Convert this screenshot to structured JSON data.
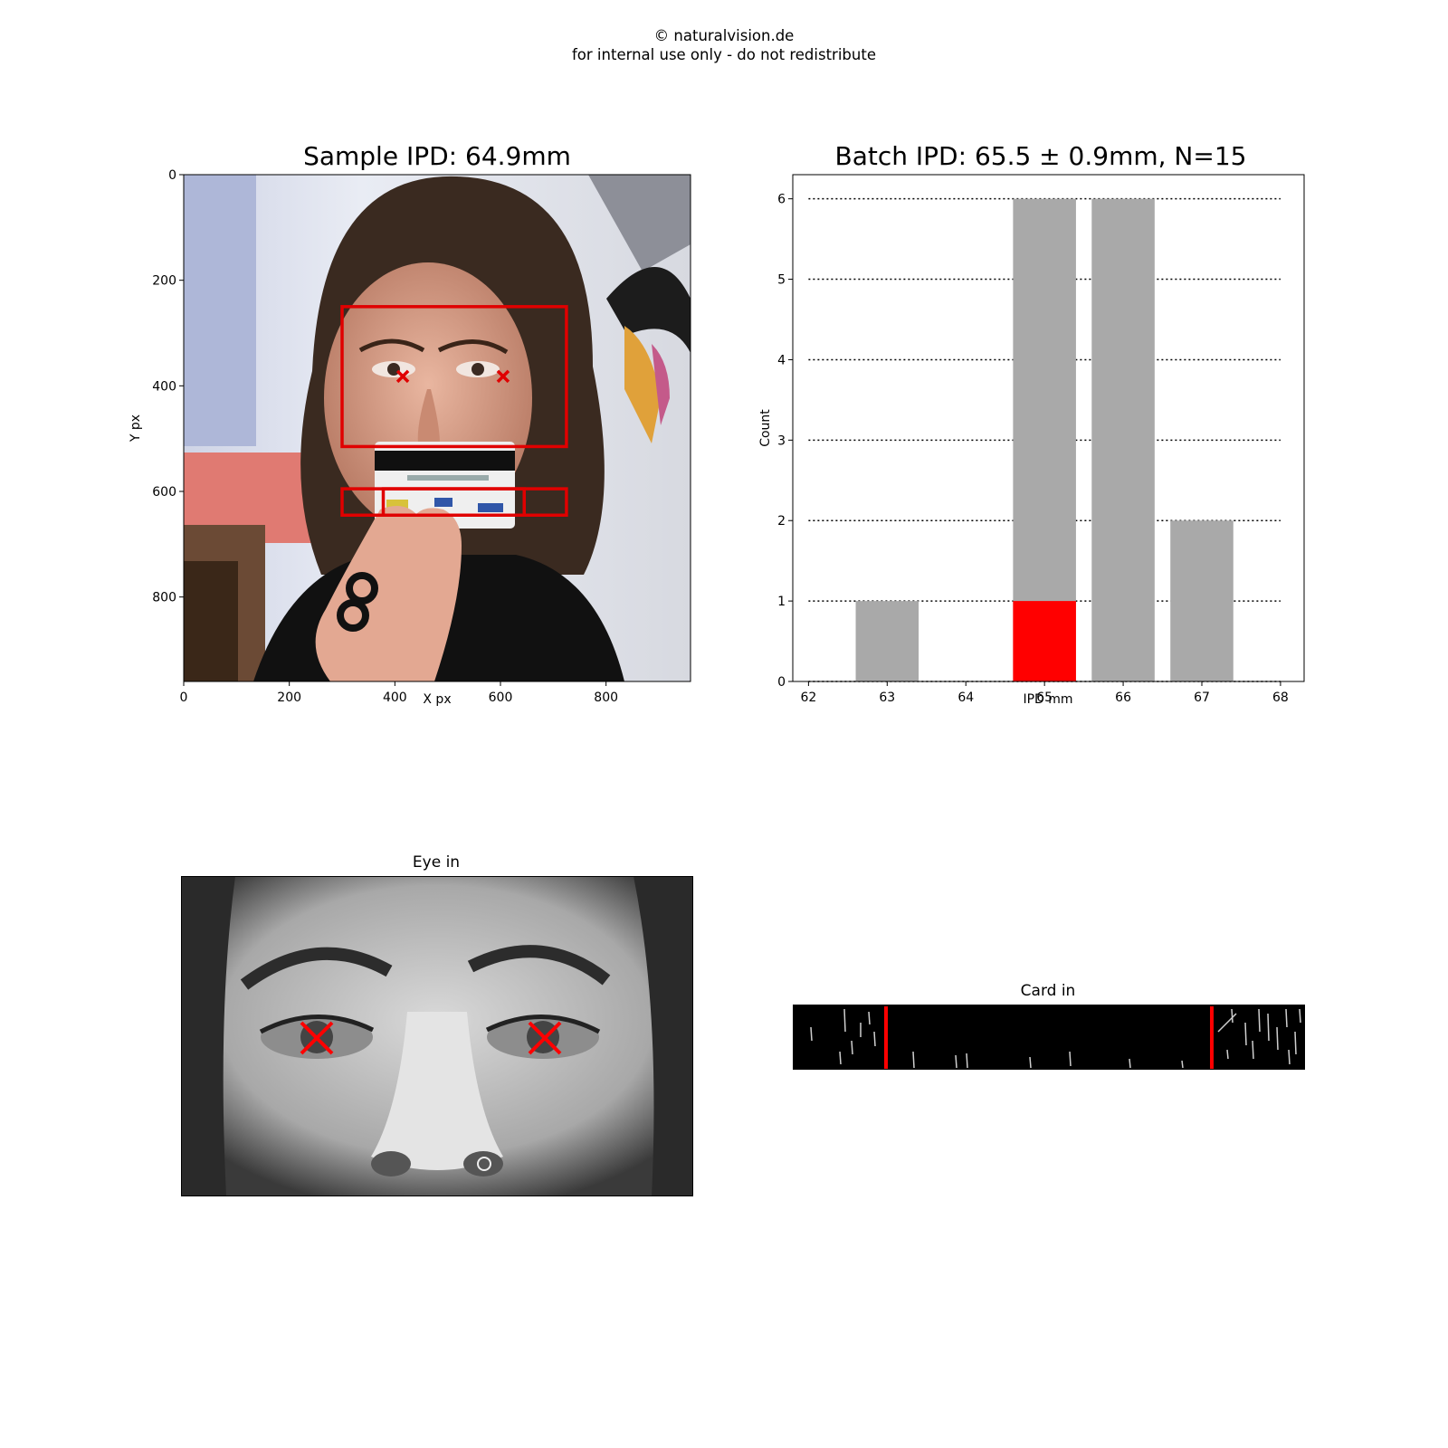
{
  "header": {
    "copyright": "© naturalvision.de",
    "notice": "for internal use only - do not redistribute"
  },
  "sample_panel": {
    "title": "Sample IPD: 64.9mm",
    "xlabel": "X px",
    "ylabel": "Y px",
    "xlim": [
      0,
      960
    ],
    "ylim": [
      960,
      0
    ],
    "xticks": [
      "0",
      "200",
      "400",
      "600",
      "800"
    ],
    "yticks": [
      "0",
      "200",
      "400",
      "600",
      "800"
    ],
    "face_box": [
      300,
      250,
      725,
      515
    ],
    "card_box": [
      300,
      595,
      725,
      645
    ],
    "card_inner": [
      378,
      595,
      645,
      645
    ],
    "eye_marks": [
      [
        415,
        382
      ],
      [
        605,
        382
      ]
    ],
    "overlay_color": "#e00000"
  },
  "eye_panel": {
    "title": "Eye in"
  },
  "card_panel": {
    "title": "Card in"
  },
  "chart_data": {
    "type": "bar",
    "title": "Batch IPD: 65.5 ± 0.9mm, N=15",
    "xlabel": "IPD mm",
    "ylabel": "Count",
    "xlim": [
      61.8,
      68.3
    ],
    "ylim": [
      0,
      6.3
    ],
    "xticks": [
      62,
      63,
      64,
      65,
      66,
      67,
      68
    ],
    "yticks": [
      0,
      1,
      2,
      3,
      4,
      5,
      6
    ],
    "grid": "horizontal dotted",
    "series": [
      {
        "x": [
          63,
          65,
          66,
          67
        ],
        "values": [
          1,
          6,
          6,
          2
        ],
        "color": "#a9a9a9"
      },
      {
        "x": [
          65
        ],
        "values": [
          1
        ],
        "color": "#ff0000"
      }
    ],
    "bar_width": 0.8
  }
}
